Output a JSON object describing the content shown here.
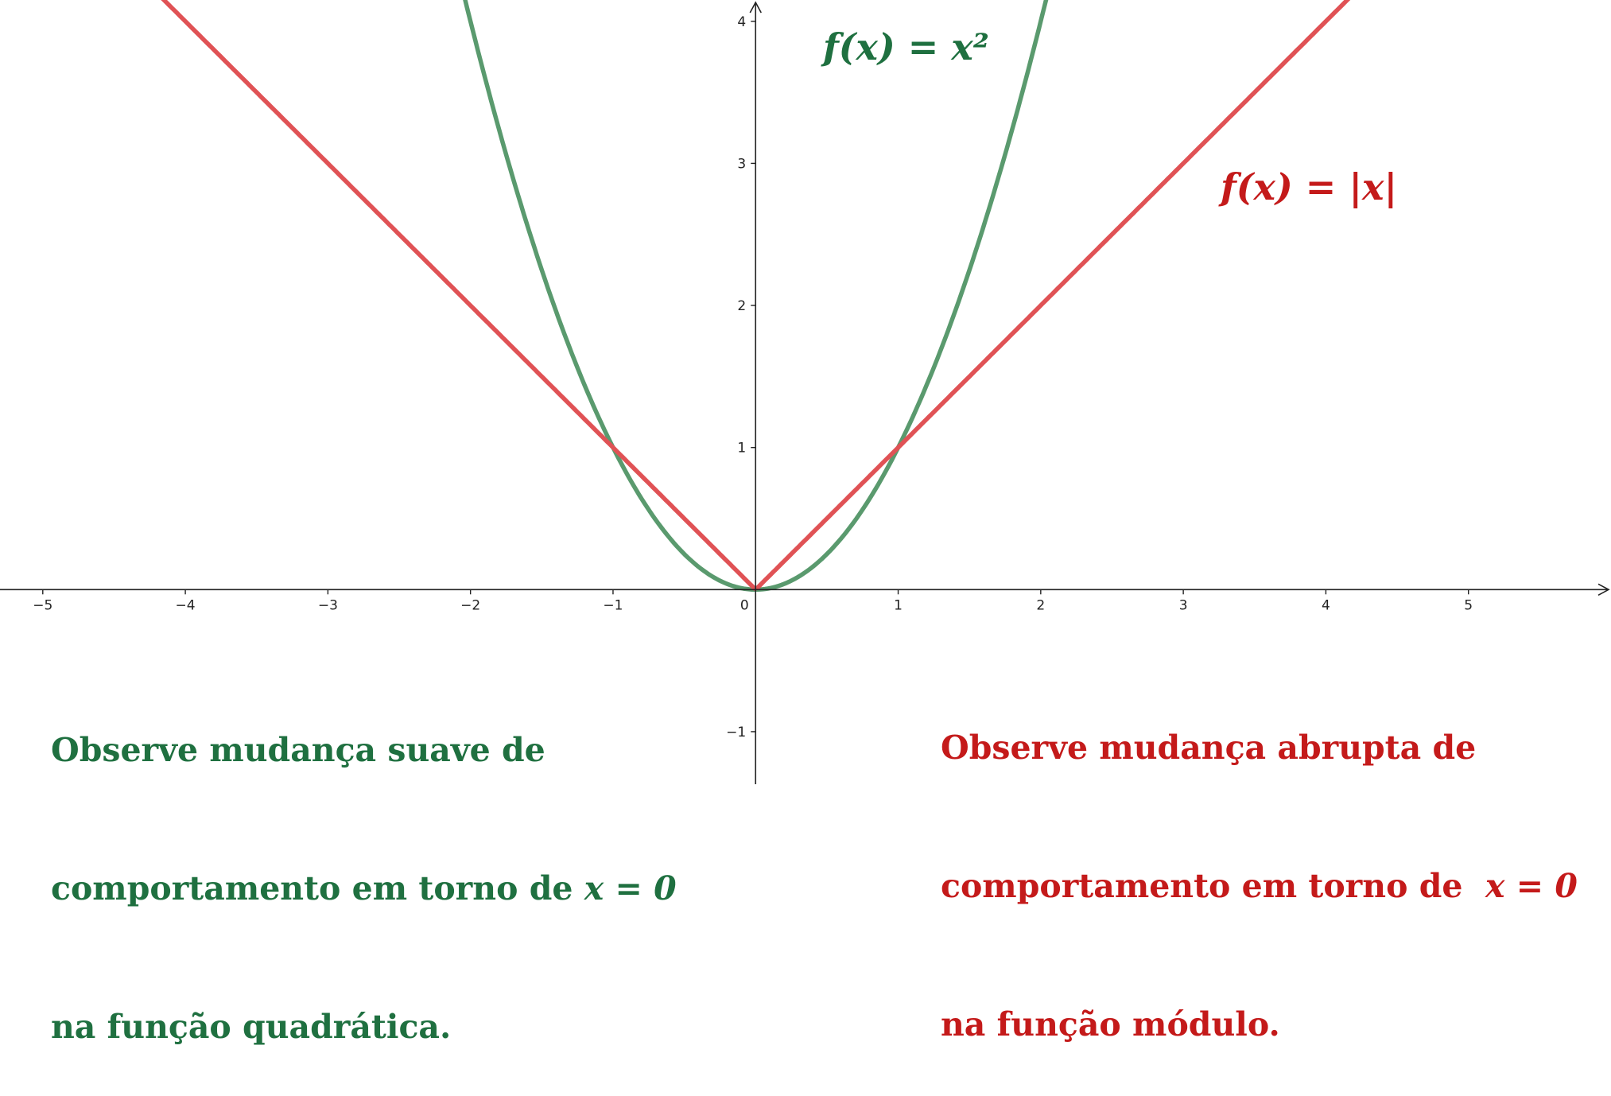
{
  "colors": {
    "quadratic": "#5a9a6e",
    "quadratic_text": "#1f7040",
    "modulus": "#e05255",
    "modulus_text": "#c41a1a",
    "axis": "#222222"
  },
  "labels": {
    "quadratic_formula": "f(x) = x²",
    "modulus_formula": "f(x) = |x|"
  },
  "notes": {
    "left": {
      "line1": "Observe mudança suave de",
      "line2_text": "comportamento em torno de ",
      "line2_math": "x = 0",
      "line3": "na função quadrática."
    },
    "right": {
      "line1": "Observe mudança abrupta de",
      "line2_text": "comportamento em torno de  ",
      "line2_math": "x = 0",
      "line3": "na função módulo."
    }
  },
  "chart_data": {
    "type": "line",
    "xlim": [
      -5.3,
      6.0
    ],
    "ylim": [
      -1.37,
      4.15
    ],
    "x_ticks": [
      -5,
      -4,
      -3,
      -2,
      -1,
      0,
      1,
      2,
      3,
      4,
      5
    ],
    "y_ticks": [
      -1,
      1,
      2,
      3,
      4
    ],
    "x_tick_labels": [
      "−5",
      "−4",
      "−3",
      "−2",
      "−1",
      "0",
      "1",
      "2",
      "3",
      "4",
      "5"
    ],
    "y_tick_labels": [
      "−1",
      "1",
      "2",
      "3",
      "4"
    ],
    "grid": false,
    "series": [
      {
        "name": "f(x) = x²",
        "function": "x^2",
        "color": "#5a9a6e"
      },
      {
        "name": "f(x) = |x|",
        "function": "abs(x)",
        "color": "#e05255"
      }
    ]
  }
}
